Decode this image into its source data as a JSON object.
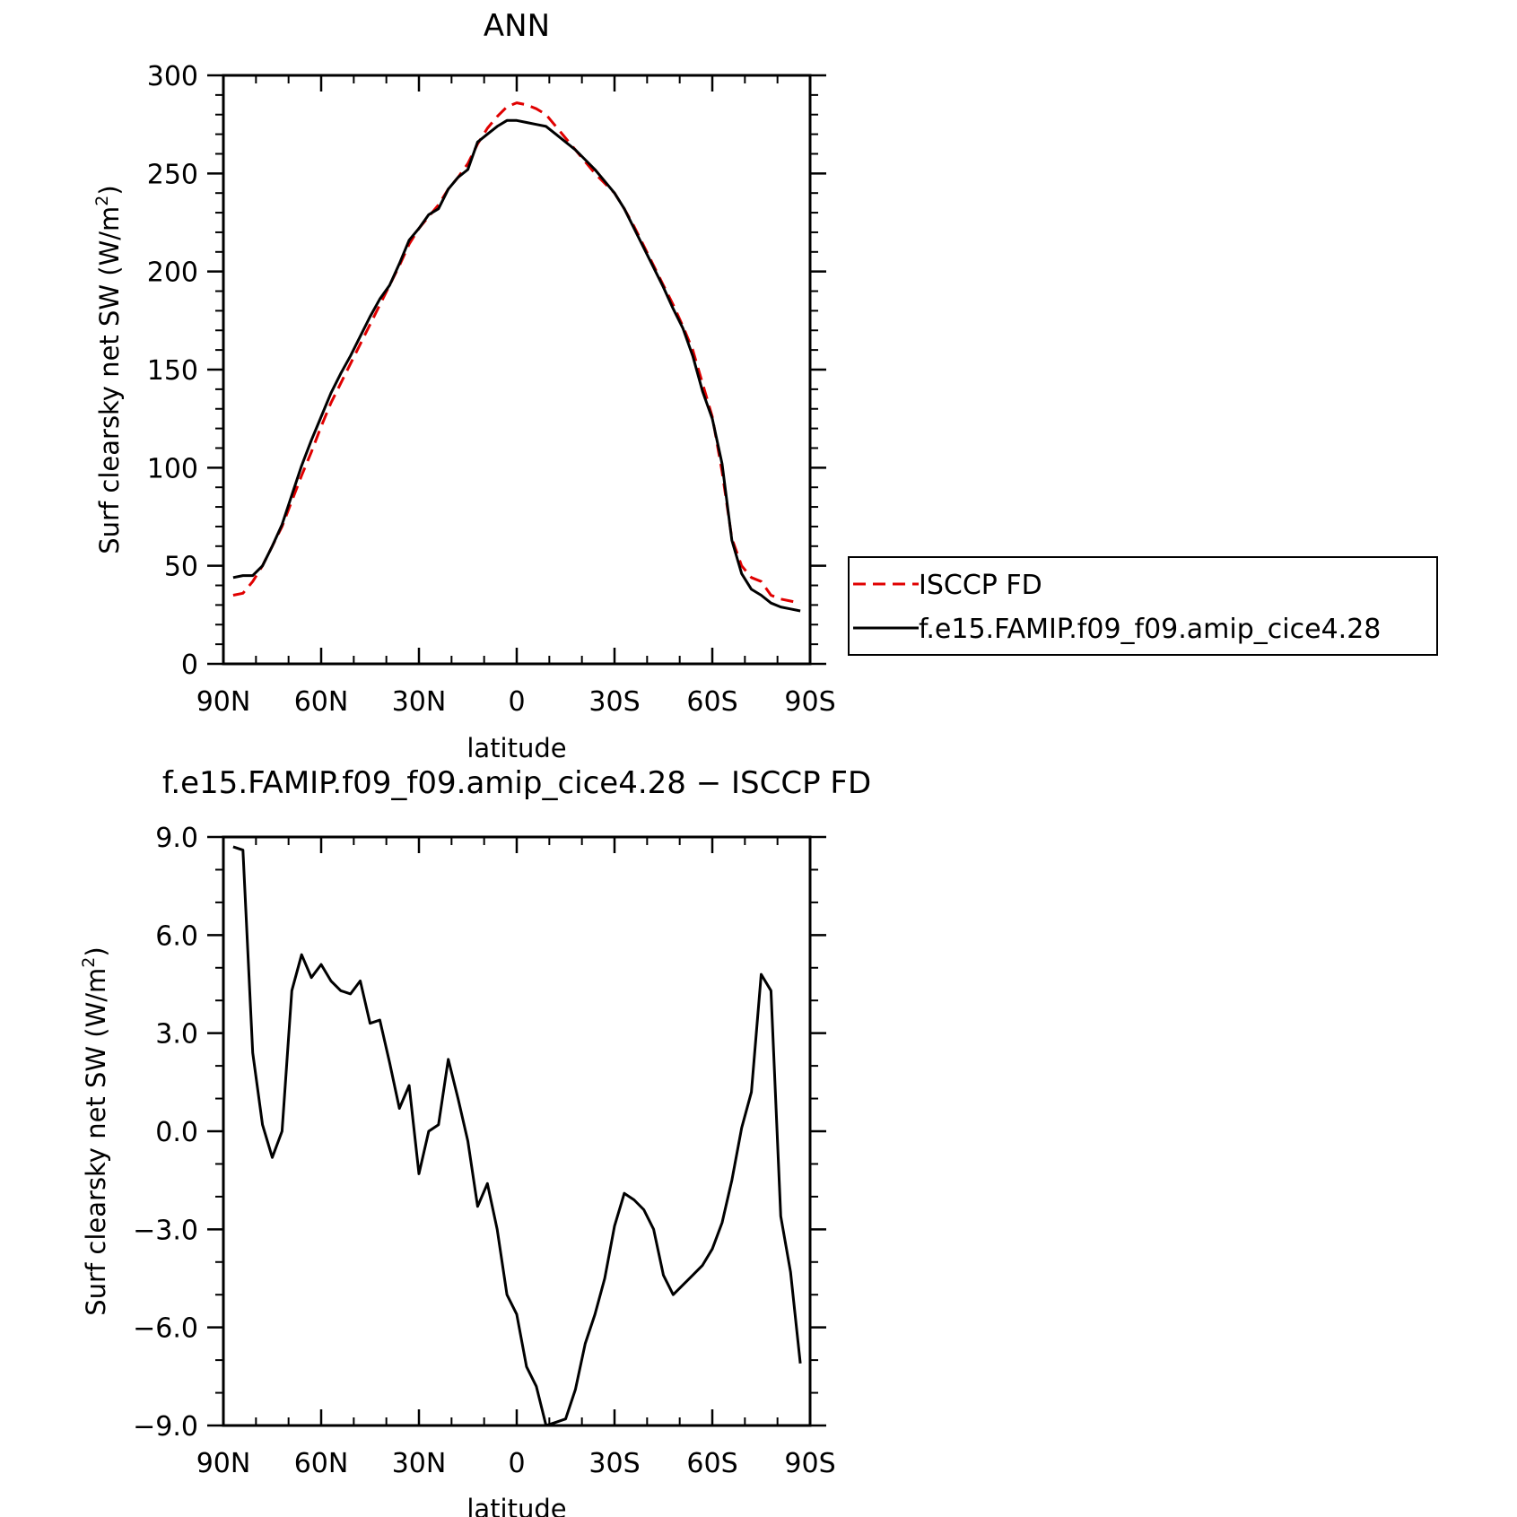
{
  "chart_data": [
    {
      "type": "line",
      "title": "ANN",
      "xlabel": "latitude",
      "ylabel": "Surf clearsky net SW (W/m",
      "ylabel_sup": "2",
      "ylabel_end": ")",
      "x_ticks": [
        90,
        60,
        30,
        0,
        -30,
        -60,
        -90
      ],
      "x_tick_labels": [
        "90N",
        "60N",
        "30N",
        "0",
        "30S",
        "60S",
        "90S"
      ],
      "xlim": [
        90,
        -90
      ],
      "ylim": [
        0,
        300
      ],
      "y_ticks": [
        0,
        50,
        100,
        150,
        200,
        250,
        300
      ],
      "y_tick_labels": [
        "0",
        "50",
        "100",
        "150",
        "200",
        "250",
        "300"
      ],
      "grid": false,
      "legend": "outside-right",
      "series": [
        {
          "name": "ISCCP FD",
          "color": "#e00000",
          "dash": "dashed",
          "x": [
            87,
            84,
            81,
            78,
            75,
            72,
            69,
            66,
            63,
            60,
            57,
            54,
            51,
            48,
            45,
            42,
            39,
            36,
            33,
            30,
            27,
            24,
            21,
            18,
            15,
            12,
            9,
            6,
            3,
            0,
            -3,
            -6,
            -9,
            -12,
            -15,
            -18,
            -21,
            -24,
            -27,
            -30,
            -33,
            -36,
            -39,
            -42,
            -45,
            -48,
            -51,
            -54,
            -57,
            -60,
            -63,
            -66,
            -69,
            -72,
            -75,
            -78,
            -81,
            -84,
            -87
          ],
          "y": [
            35,
            36,
            42,
            50,
            60,
            70,
            83,
            96,
            108,
            121,
            133,
            143,
            153,
            163,
            173,
            183,
            193,
            203,
            214,
            222,
            228,
            234,
            242,
            248,
            255,
            265,
            273,
            279,
            284,
            286,
            285,
            283,
            280,
            274,
            268,
            262,
            256,
            250,
            245,
            240,
            232,
            223,
            213,
            203,
            193,
            183,
            172,
            160,
            143,
            126,
            98,
            64,
            50,
            44,
            42,
            35,
            33,
            32,
            31
          ]
        },
        {
          "name": "f.e15.FAMIP.f09_f09.amip_cice4.28",
          "color": "#000000",
          "dash": "solid",
          "x": [
            87,
            84,
            81,
            78,
            75,
            72,
            69,
            66,
            63,
            60,
            57,
            54,
            51,
            48,
            45,
            42,
            39,
            36,
            33,
            30,
            27,
            24,
            21,
            18,
            15,
            12,
            9,
            6,
            3,
            0,
            -3,
            -6,
            -9,
            -12,
            -15,
            -18,
            -21,
            -24,
            -27,
            -30,
            -33,
            -36,
            -39,
            -42,
            -45,
            -48,
            -51,
            -54,
            -57,
            -60,
            -63,
            -66,
            -69,
            -72,
            -75,
            -78,
            -81,
            -84,
            -87
          ],
          "y": [
            44,
            45,
            45,
            50,
            60,
            71,
            86,
            101,
            114,
            126,
            138,
            148,
            157,
            167,
            177,
            186,
            193,
            204,
            216,
            222,
            229,
            232,
            242,
            248,
            252,
            266,
            270,
            274,
            277,
            277,
            276,
            275,
            274,
            270,
            266,
            262,
            257,
            252,
            246,
            240,
            232,
            222,
            212,
            202,
            192,
            181,
            171,
            157,
            139,
            125,
            102,
            63,
            46,
            38,
            35,
            31,
            29,
            28,
            27
          ]
        }
      ]
    },
    {
      "type": "line",
      "title": "f.e15.FAMIP.f09_f09.amip_cice4.28 − ISCCP FD",
      "xlabel": "latitude",
      "ylabel": "Surf clearsky net SW (W/m",
      "ylabel_sup": "2",
      "ylabel_end": ")",
      "x_ticks": [
        90,
        60,
        30,
        0,
        -30,
        -60,
        -90
      ],
      "x_tick_labels": [
        "90N",
        "60N",
        "30N",
        "0",
        "30S",
        "60S",
        "90S"
      ],
      "xlim": [
        90,
        -90
      ],
      "ylim": [
        -9.0,
        9.0
      ],
      "y_ticks": [
        -9,
        -6,
        -3,
        0,
        3,
        6,
        9
      ],
      "y_tick_labels": [
        "−9.0",
        "−6.0",
        "−3.0",
        "0.0",
        "3.0",
        "6.0",
        "9.0"
      ],
      "grid": false,
      "series": [
        {
          "color": "#000000",
          "dash": "solid",
          "x": [
            87,
            84,
            81,
            78,
            75,
            72,
            69,
            66,
            63,
            60,
            57,
            54,
            51,
            48,
            45,
            42,
            39,
            36,
            33,
            30,
            27,
            24,
            21,
            18,
            15,
            12,
            9,
            6,
            3,
            0,
            -3,
            -6,
            -9,
            -12,
            -15,
            -18,
            -21,
            -24,
            -27,
            -30,
            -33,
            -36,
            -39,
            -42,
            -45,
            -48,
            -51,
            -54,
            -57,
            -60,
            -63,
            -66,
            -69,
            -72,
            -75,
            -78,
            -81,
            -84,
            -87
          ],
          "y": [
            8.7,
            8.6,
            2.4,
            0.2,
            -0.8,
            0.0,
            4.3,
            5.4,
            4.7,
            5.1,
            4.6,
            4.3,
            4.2,
            4.6,
            3.3,
            3.4,
            2.1,
            0.7,
            1.4,
            -1.3,
            0.0,
            0.2,
            2.2,
            1.0,
            -0.3,
            -2.3,
            -1.6,
            -3.0,
            -5.0,
            -5.6,
            -7.2,
            -7.8,
            -9.0,
            -8.9,
            -8.8,
            -7.9,
            -6.5,
            -5.6,
            -4.5,
            -2.9,
            -1.9,
            -2.1,
            -2.4,
            -3.0,
            -4.4,
            -5.0,
            -4.7,
            -4.4,
            -4.1,
            -3.6,
            -2.8,
            -1.5,
            0.1,
            1.2,
            4.8,
            4.3,
            -2.6,
            -4.3,
            -7.1
          ]
        }
      ]
    }
  ]
}
